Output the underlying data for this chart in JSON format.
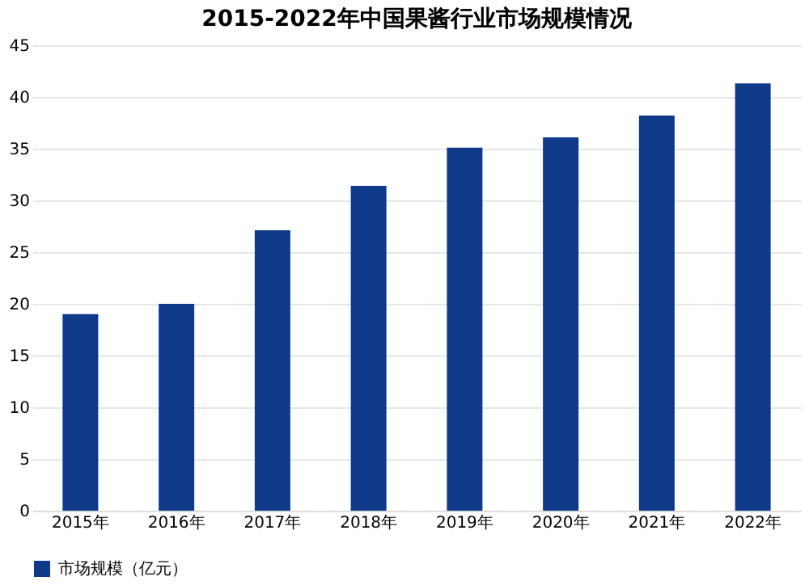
{
  "chart_data": {
    "type": "bar",
    "title": "2015-2022年中国果酱行业市场规模情况",
    "categories": [
      "2015年",
      "2016年",
      "2017年",
      "2018年",
      "2019年",
      "2020年",
      "2021年",
      "2022年"
    ],
    "series": [
      {
        "name": "市场规模（亿元）",
        "color": "#0f3a8a",
        "values": [
          19.0,
          20.0,
          27.1,
          31.4,
          35.1,
          36.1,
          38.2,
          41.3
        ]
      }
    ],
    "ylim": [
      0,
      45
    ],
    "yticks": [
      0,
      5,
      10,
      15,
      20,
      25,
      30,
      35,
      40,
      45
    ],
    "grid": "y",
    "legend": "bottom"
  }
}
